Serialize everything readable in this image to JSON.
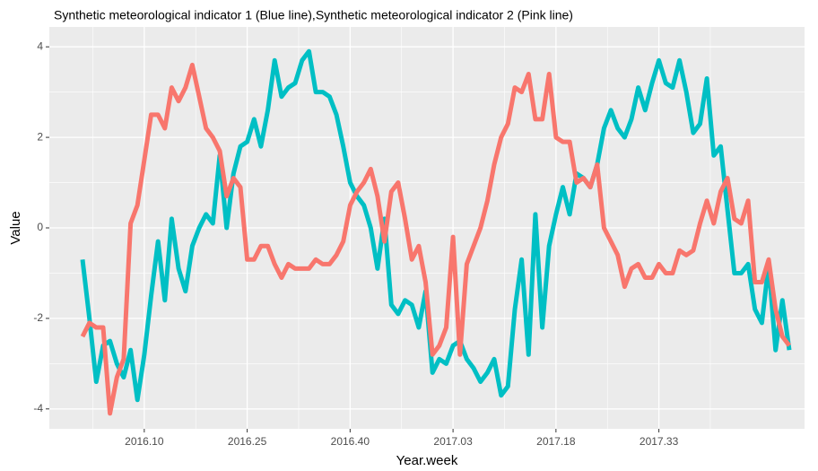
{
  "chart_data": {
    "type": "line",
    "title": "Synthetic meteorological indicator 1 (Blue line),Synthetic meteorological indicator 2 (Pink line)",
    "x_label": "Year.week",
    "y_label": "Value",
    "categories": [
      null,
      null,
      null,
      null,
      null,
      null,
      null,
      null,
      null,
      "2016.10",
      null,
      null,
      null,
      null,
      null,
      null,
      null,
      null,
      null,
      null,
      null,
      null,
      null,
      null,
      "2016.25",
      null,
      null,
      null,
      null,
      null,
      null,
      null,
      null,
      null,
      null,
      null,
      null,
      null,
      null,
      "2016.40",
      null,
      null,
      null,
      null,
      null,
      null,
      null,
      null,
      null,
      null,
      null,
      null,
      null,
      null,
      "2017.03",
      null,
      null,
      null,
      null,
      null,
      null,
      null,
      null,
      null,
      null,
      null,
      null,
      null,
      null,
      "2017.18",
      null,
      null,
      null,
      null,
      null,
      null,
      null,
      null,
      null,
      null,
      null,
      null,
      null,
      null,
      "2017.33",
      null,
      null,
      null,
      null,
      null,
      null,
      null,
      null,
      null,
      null,
      null,
      null,
      null,
      null,
      null,
      null,
      null,
      null,
      null
    ],
    "series": [
      {
        "color": "#00BFC4",
        "values": [
          -0.7,
          -2.0,
          -3.4,
          -2.6,
          -2.5,
          -3.0,
          -3.3,
          -2.7,
          -3.8,
          -2.8,
          -1.5,
          -0.3,
          -1.6,
          0.2,
          -0.9,
          -1.4,
          -0.4,
          0.0,
          0.3,
          0.1,
          1.6,
          0.0,
          1.2,
          1.8,
          1.9,
          2.4,
          1.8,
          2.6,
          3.7,
          2.9,
          3.1,
          3.2,
          3.7,
          3.9,
          3.0,
          3.0,
          2.9,
          2.5,
          1.8,
          1.0,
          0.7,
          0.5,
          0.0,
          -0.9,
          0.2,
          -1.7,
          -1.9,
          -1.6,
          -1.7,
          -2.2,
          -1.4,
          -3.2,
          -2.9,
          -3.0,
          -2.6,
          -2.5,
          -2.9,
          -3.1,
          -3.4,
          -3.2,
          -2.9,
          -3.7,
          -3.5,
          -1.8,
          -0.7,
          -2.8,
          0.3,
          -2.2,
          -0.4,
          0.3,
          0.9,
          0.3,
          1.2,
          1.1,
          0.9,
          1.4,
          2.2,
          2.6,
          2.2,
          2.0,
          2.4,
          3.1,
          2.6,
          3.2,
          3.7,
          3.2,
          3.1,
          3.7,
          3.0,
          2.1,
          2.3,
          3.3,
          1.6,
          1.8,
          0.4,
          -1.0,
          -1.0,
          -0.8,
          -1.8,
          -2.1,
          -0.8,
          -2.7,
          -1.6,
          -2.7
        ]
      },
      {
        "color": "#F8766D",
        "values": [
          -2.4,
          -2.1,
          -2.2,
          -2.2,
          -4.1,
          -3.3,
          -2.9,
          0.1,
          0.5,
          1.5,
          2.5,
          2.5,
          2.2,
          3.1,
          2.8,
          3.1,
          3.6,
          2.9,
          2.2,
          2.0,
          1.7,
          0.7,
          1.1,
          0.9,
          -0.7,
          -0.7,
          -0.4,
          -0.4,
          -0.8,
          -1.1,
          -0.8,
          -0.9,
          -0.9,
          -0.9,
          -0.7,
          -0.8,
          -0.8,
          -0.6,
          -0.3,
          0.5,
          0.8,
          1.0,
          1.3,
          0.7,
          -0.3,
          0.8,
          1.0,
          0.2,
          -0.7,
          -0.4,
          -1.2,
          -2.8,
          -2.6,
          -2.2,
          -0.2,
          -2.8,
          -0.8,
          -0.4,
          0.0,
          0.6,
          1.4,
          2.0,
          2.3,
          3.1,
          3.0,
          3.4,
          2.4,
          2.4,
          3.4,
          2.0,
          1.9,
          1.9,
          1.0,
          1.1,
          0.9,
          1.4,
          0.0,
          -0.3,
          -0.6,
          -1.3,
          -0.9,
          -0.8,
          -1.1,
          -1.1,
          -0.8,
          -1.0,
          -1.0,
          -0.5,
          -0.6,
          -0.5,
          0.1,
          0.6,
          0.1,
          0.8,
          1.1,
          0.2,
          0.1,
          0.6,
          -1.2,
          -1.2,
          -0.7,
          -1.8,
          -2.4,
          -2.6
        ]
      }
    ],
    "ylim": [
      -4.44,
      4.44
    ],
    "yticks": [
      -4,
      -2,
      0,
      2,
      4
    ],
    "grid": true
  }
}
